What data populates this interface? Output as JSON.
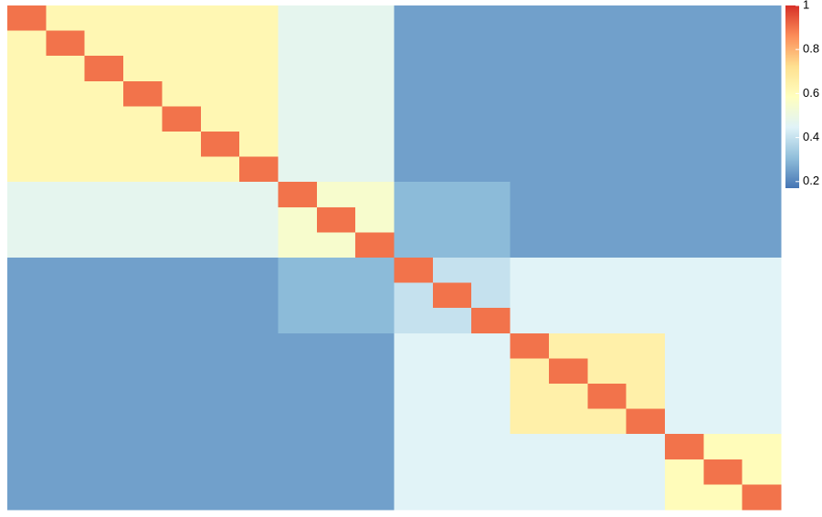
{
  "chart_data": {
    "type": "heatmap",
    "colors": [
      "#4575b4",
      "#91bfdb",
      "#e0f3f8",
      "#ffffbf",
      "#fee090",
      "#fc8d59",
      "#d73027"
    ],
    "colorbar_lim": [
      0.17,
      1
    ],
    "colorbar_ticks": [
      1,
      0.8,
      0.6,
      0.4,
      0.2
    ],
    "values": [
      [
        0.9,
        0.62,
        0.62,
        0.62,
        0.62,
        0.62,
        0.62,
        0.47,
        0.47,
        0.47,
        0.25,
        0.25,
        0.25,
        0.25,
        0.25,
        0.25,
        0.25,
        0.25,
        0.25,
        0.25
      ],
      [
        0.62,
        0.9,
        0.62,
        0.62,
        0.62,
        0.62,
        0.62,
        0.47,
        0.47,
        0.47,
        0.25,
        0.25,
        0.25,
        0.25,
        0.25,
        0.25,
        0.25,
        0.25,
        0.25,
        0.25
      ],
      [
        0.62,
        0.62,
        0.9,
        0.62,
        0.62,
        0.62,
        0.62,
        0.47,
        0.47,
        0.47,
        0.25,
        0.25,
        0.25,
        0.25,
        0.25,
        0.25,
        0.25,
        0.25,
        0.25,
        0.25
      ],
      [
        0.62,
        0.62,
        0.62,
        0.9,
        0.62,
        0.62,
        0.62,
        0.47,
        0.47,
        0.47,
        0.25,
        0.25,
        0.25,
        0.25,
        0.25,
        0.25,
        0.25,
        0.25,
        0.25,
        0.25
      ],
      [
        0.62,
        0.62,
        0.62,
        0.62,
        0.9,
        0.62,
        0.62,
        0.47,
        0.47,
        0.47,
        0.25,
        0.25,
        0.25,
        0.25,
        0.25,
        0.25,
        0.25,
        0.25,
        0.25,
        0.25
      ],
      [
        0.62,
        0.62,
        0.62,
        0.62,
        0.62,
        0.9,
        0.62,
        0.47,
        0.47,
        0.47,
        0.25,
        0.25,
        0.25,
        0.25,
        0.25,
        0.25,
        0.25,
        0.25,
        0.25,
        0.25
      ],
      [
        0.62,
        0.62,
        0.62,
        0.62,
        0.62,
        0.62,
        0.9,
        0.47,
        0.47,
        0.47,
        0.25,
        0.25,
        0.25,
        0.25,
        0.25,
        0.25,
        0.25,
        0.25,
        0.25,
        0.25
      ],
      [
        0.47,
        0.47,
        0.47,
        0.47,
        0.47,
        0.47,
        0.47,
        0.9,
        0.55,
        0.55,
        0.3,
        0.3,
        0.3,
        0.25,
        0.25,
        0.25,
        0.25,
        0.25,
        0.25,
        0.25
      ],
      [
        0.47,
        0.47,
        0.47,
        0.47,
        0.47,
        0.47,
        0.47,
        0.55,
        0.9,
        0.55,
        0.3,
        0.3,
        0.3,
        0.25,
        0.25,
        0.25,
        0.25,
        0.25,
        0.25,
        0.25
      ],
      [
        0.47,
        0.47,
        0.47,
        0.47,
        0.47,
        0.47,
        0.47,
        0.55,
        0.55,
        0.9,
        0.3,
        0.3,
        0.3,
        0.25,
        0.25,
        0.25,
        0.25,
        0.25,
        0.25,
        0.25
      ],
      [
        0.25,
        0.25,
        0.25,
        0.25,
        0.25,
        0.25,
        0.25,
        0.3,
        0.3,
        0.3,
        0.9,
        0.4,
        0.4,
        0.45,
        0.45,
        0.45,
        0.45,
        0.45,
        0.45,
        0.45
      ],
      [
        0.25,
        0.25,
        0.25,
        0.25,
        0.25,
        0.25,
        0.25,
        0.3,
        0.3,
        0.3,
        0.4,
        0.9,
        0.4,
        0.45,
        0.45,
        0.45,
        0.45,
        0.45,
        0.45,
        0.45
      ],
      [
        0.25,
        0.25,
        0.25,
        0.25,
        0.25,
        0.25,
        0.25,
        0.3,
        0.3,
        0.3,
        0.4,
        0.4,
        0.9,
        0.45,
        0.45,
        0.45,
        0.45,
        0.45,
        0.45,
        0.45
      ],
      [
        0.25,
        0.25,
        0.25,
        0.25,
        0.25,
        0.25,
        0.25,
        0.25,
        0.25,
        0.25,
        0.45,
        0.45,
        0.45,
        0.9,
        0.65,
        0.65,
        0.65,
        0.45,
        0.45,
        0.45
      ],
      [
        0.25,
        0.25,
        0.25,
        0.25,
        0.25,
        0.25,
        0.25,
        0.25,
        0.25,
        0.25,
        0.45,
        0.45,
        0.45,
        0.65,
        0.9,
        0.65,
        0.65,
        0.45,
        0.45,
        0.45
      ],
      [
        0.25,
        0.25,
        0.25,
        0.25,
        0.25,
        0.25,
        0.25,
        0.25,
        0.25,
        0.25,
        0.45,
        0.45,
        0.45,
        0.65,
        0.65,
        0.9,
        0.65,
        0.45,
        0.45,
        0.45
      ],
      [
        0.25,
        0.25,
        0.25,
        0.25,
        0.25,
        0.25,
        0.25,
        0.25,
        0.25,
        0.25,
        0.45,
        0.45,
        0.45,
        0.65,
        0.65,
        0.65,
        0.9,
        0.45,
        0.45,
        0.45
      ],
      [
        0.25,
        0.25,
        0.25,
        0.25,
        0.25,
        0.25,
        0.25,
        0.25,
        0.25,
        0.25,
        0.45,
        0.45,
        0.45,
        0.45,
        0.45,
        0.45,
        0.45,
        0.9,
        0.6,
        0.6
      ],
      [
        0.25,
        0.25,
        0.25,
        0.25,
        0.25,
        0.25,
        0.25,
        0.25,
        0.25,
        0.25,
        0.45,
        0.45,
        0.45,
        0.45,
        0.45,
        0.45,
        0.45,
        0.6,
        0.9,
        0.6
      ],
      [
        0.25,
        0.25,
        0.25,
        0.25,
        0.25,
        0.25,
        0.25,
        0.25,
        0.25,
        0.25,
        0.45,
        0.45,
        0.45,
        0.45,
        0.45,
        0.45,
        0.45,
        0.6,
        0.6,
        0.9
      ]
    ]
  }
}
